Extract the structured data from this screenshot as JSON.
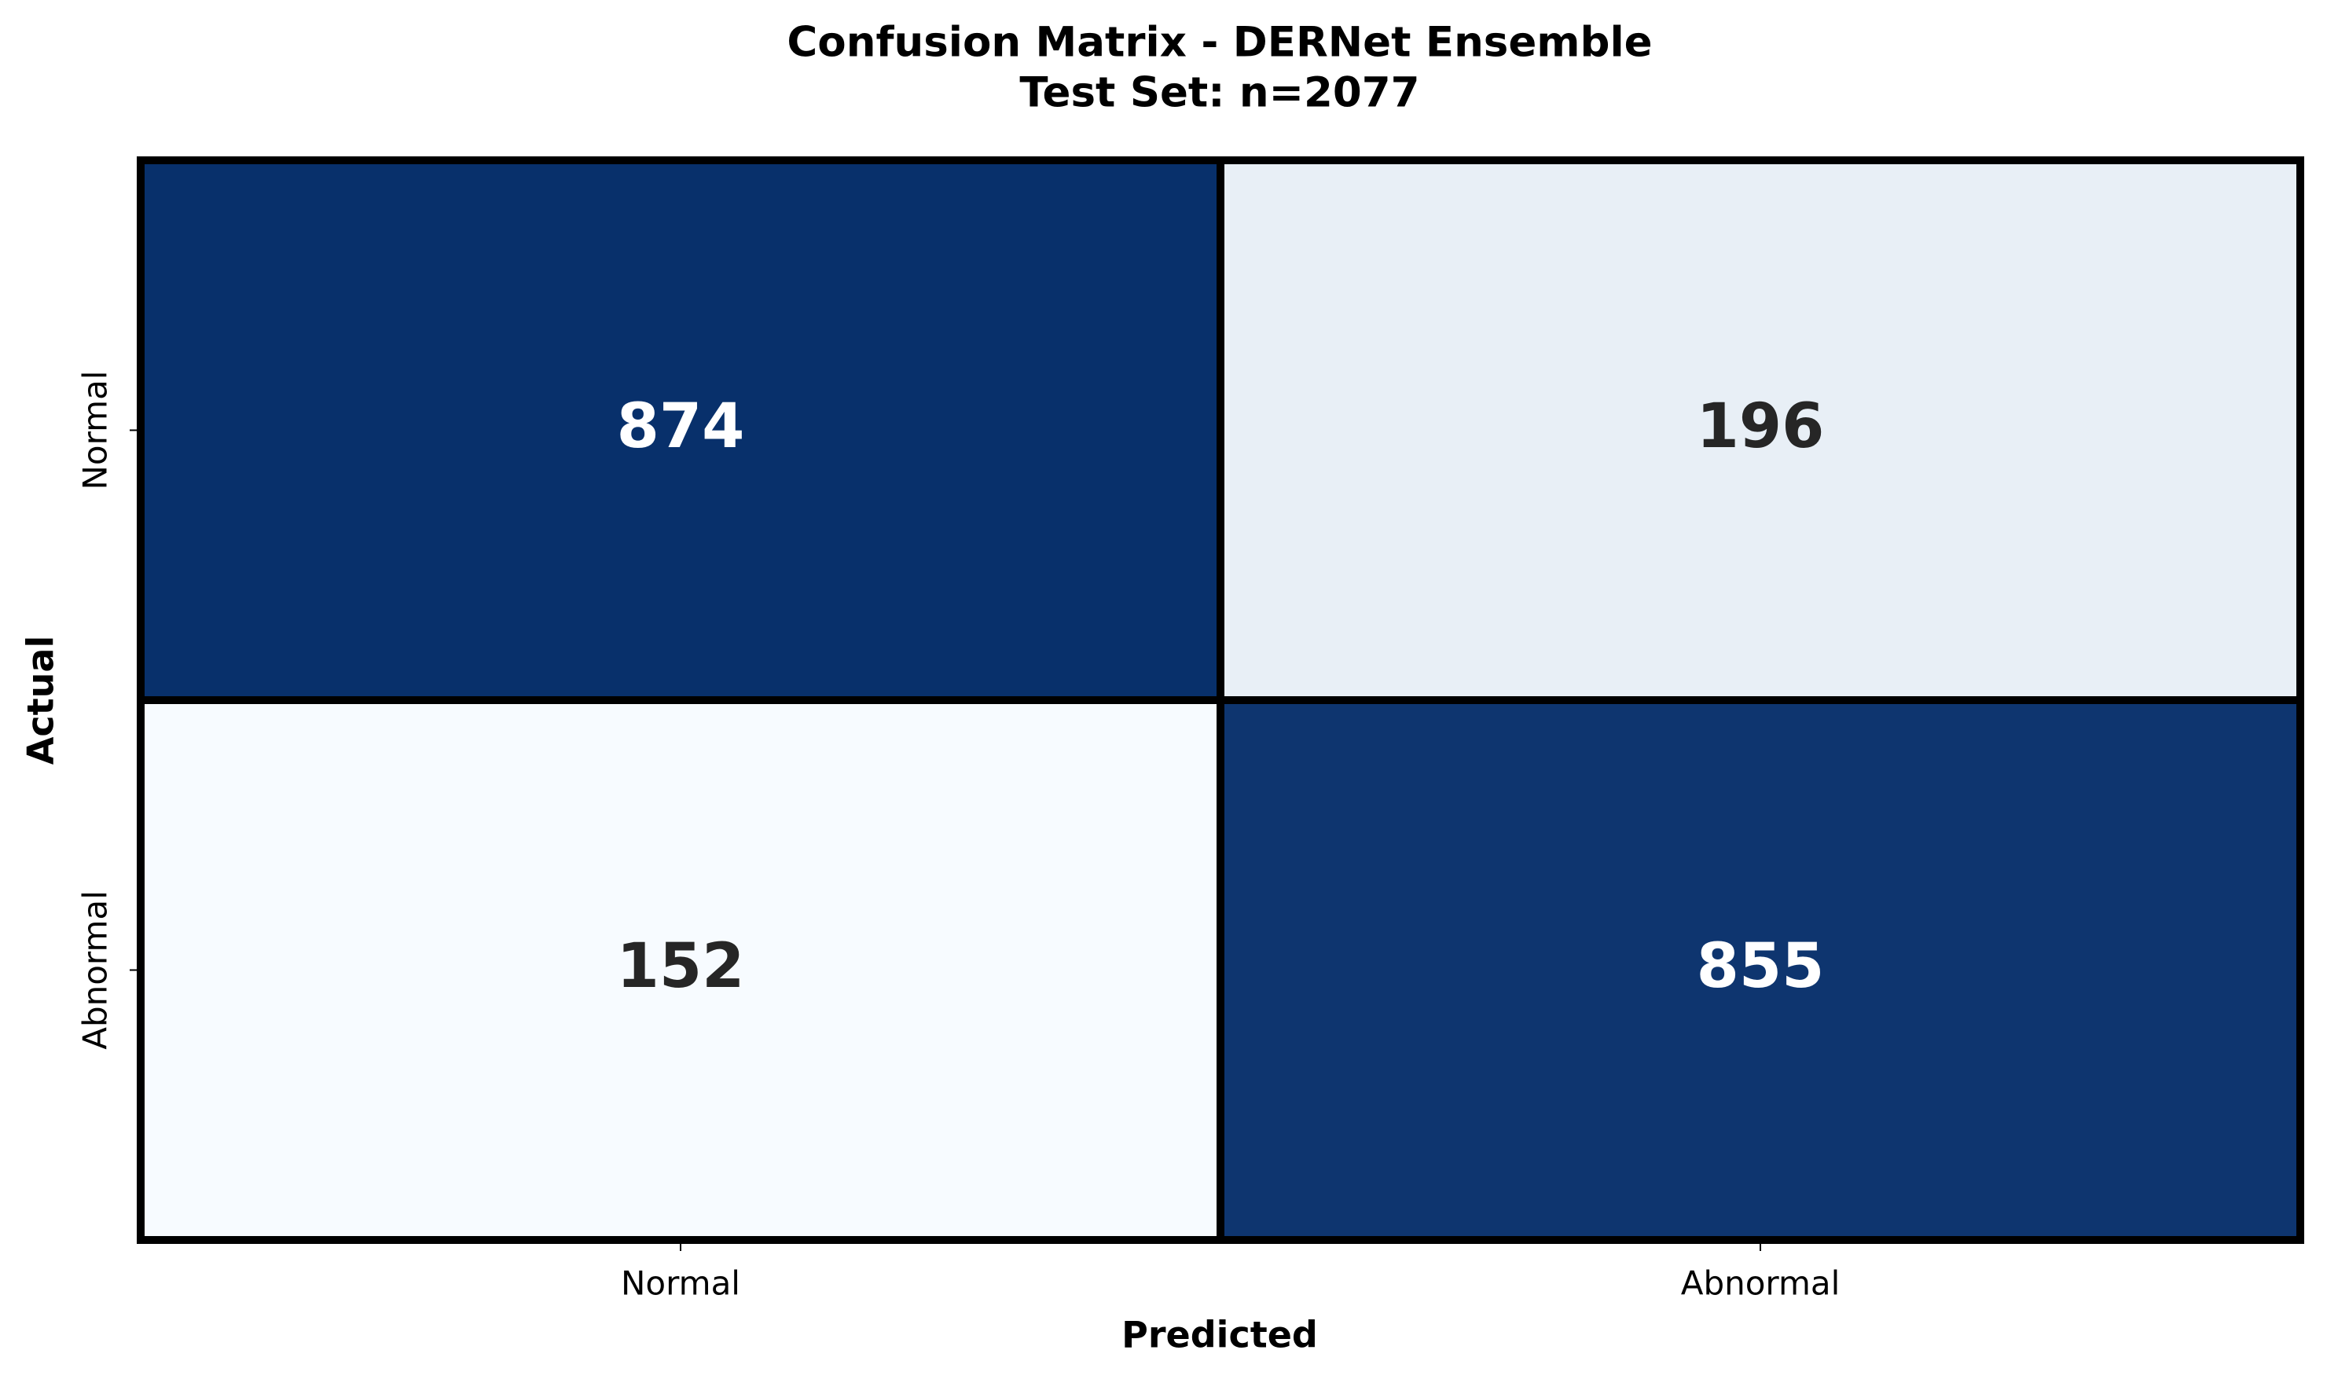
{
  "chart_data": {
    "type": "heatmap",
    "title": [
      "Confusion Matrix - DERNet Ensemble",
      "Test Set: n=2077"
    ],
    "x_label": "Predicted",
    "y_label": "Actual",
    "x_categories": [
      "Normal",
      "Abnormal"
    ],
    "y_categories": [
      "Normal",
      "Abnormal"
    ],
    "values": [
      [
        874,
        196
      ],
      [
        152,
        855
      ]
    ],
    "colormap": [
      "#f7fbff",
      "#08306b"
    ],
    "text_colors": [
      "#262626",
      "#ffffff"
    ]
  }
}
